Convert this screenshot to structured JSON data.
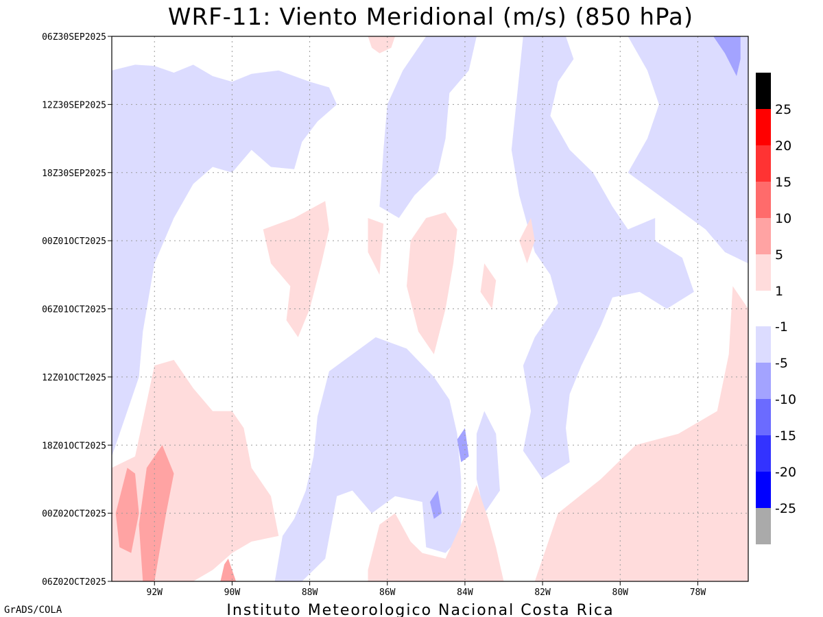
{
  "chart_data": {
    "type": "heatmap",
    "title": "WRF-11: Viento Meridional (m/s) (850 hPa)",
    "xlabel": "",
    "ylabel": "",
    "x_ticks": [
      "92W",
      "90W",
      "88W",
      "86W",
      "84W",
      "82W",
      "80W",
      "78W"
    ],
    "x_tick_values": [
      -92,
      -90,
      -88,
      -86,
      -84,
      -82,
      -80,
      -78
    ],
    "xlim": [
      -93.1,
      -76.7
    ],
    "y_ticks": [
      "06Z30SEP2025",
      "12Z30SEP2025",
      "18Z30SEP2025",
      "00Z01OCT2025",
      "06Z01OCT2025",
      "12Z01OCT2025",
      "18Z01OCT2025",
      "00Z02OCT2025",
      "06Z02OCT2025"
    ],
    "y_tick_values": [
      0,
      6,
      12,
      18,
      24,
      30,
      36,
      42,
      48
    ],
    "ylim": [
      0,
      48
    ],
    "grid": true,
    "colorbar": {
      "position": "right",
      "positive_levels": [
        "25",
        "20",
        "15",
        "10",
        "5",
        "1"
      ],
      "negative_levels": [
        "-1",
        "-5",
        "-10",
        "-15",
        "-20",
        "-25"
      ],
      "positive_colors": [
        "#000000",
        "#ff0000",
        "#ff3333",
        "#ff6b6b",
        "#ffa3a3",
        "#ffdcdc"
      ],
      "negative_colors": [
        "#dcdcff",
        "#a3a3ff",
        "#6b6bff",
        "#3333ff",
        "#0000ff",
        "#aaaaaa"
      ]
    },
    "regions": [
      {
        "v": -3,
        "pts": [
          [
            -93.1,
            3
          ],
          [
            -92.5,
            2.5
          ],
          [
            -92,
            2.6
          ],
          [
            -91.5,
            3.2
          ],
          [
            -91,
            2.5
          ],
          [
            -90.5,
            3.5
          ],
          [
            -90,
            4
          ],
          [
            -89.5,
            3.3
          ],
          [
            -88.8,
            3
          ],
          [
            -88,
            4
          ],
          [
            -87.5,
            4.5
          ],
          [
            -87.3,
            6
          ],
          [
            -87.8,
            7.5
          ],
          [
            -88.2,
            9.3
          ],
          [
            -88.4,
            11.7
          ],
          [
            -89,
            11.5
          ],
          [
            -89.5,
            10
          ],
          [
            -90,
            12
          ],
          [
            -90.5,
            11.5
          ],
          [
            -91,
            13
          ],
          [
            -91.5,
            16
          ],
          [
            -92,
            20
          ],
          [
            -92.3,
            26
          ],
          [
            -92.4,
            30
          ],
          [
            -92.8,
            34
          ],
          [
            -93.1,
            37
          ]
        ]
      },
      {
        "v": -3,
        "pts": [
          [
            -85,
            0
          ],
          [
            -83.7,
            0
          ],
          [
            -83.9,
            3
          ],
          [
            -84.4,
            5
          ],
          [
            -84.5,
            9
          ],
          [
            -84.7,
            12
          ],
          [
            -85.3,
            14
          ],
          [
            -85.7,
            16
          ],
          [
            -86.2,
            15
          ],
          [
            -86.1,
            10
          ],
          [
            -86,
            6
          ],
          [
            -85.6,
            3
          ]
        ]
      },
      {
        "v": -3,
        "pts": [
          [
            -82.5,
            0
          ],
          [
            -81.4,
            0
          ],
          [
            -81.2,
            2
          ],
          [
            -81.6,
            4
          ],
          [
            -81.8,
            7
          ],
          [
            -81.3,
            10
          ],
          [
            -80.7,
            12
          ],
          [
            -80.2,
            15
          ],
          [
            -79.8,
            17
          ],
          [
            -79.1,
            16
          ],
          [
            -79.1,
            18
          ],
          [
            -78.4,
            19.5
          ],
          [
            -78.1,
            22.5
          ],
          [
            -78.8,
            24
          ],
          [
            -79.5,
            22.5
          ],
          [
            -80.2,
            23
          ],
          [
            -80.5,
            25.5
          ],
          [
            -81,
            29
          ],
          [
            -81.3,
            31.5
          ],
          [
            -81.4,
            34.5
          ],
          [
            -81.3,
            37.5
          ],
          [
            -82,
            39
          ],
          [
            -82.5,
            36.5
          ],
          [
            -82.3,
            33
          ],
          [
            -82.5,
            29
          ],
          [
            -82.2,
            26.5
          ],
          [
            -81.6,
            23.5
          ],
          [
            -81.8,
            21
          ],
          [
            -82.2,
            19
          ],
          [
            -82.6,
            14
          ],
          [
            -82.8,
            10
          ]
        ]
      },
      {
        "v": -3,
        "pts": [
          [
            -79.8,
            0
          ],
          [
            -76.7,
            0
          ],
          [
            -76.7,
            20
          ],
          [
            -77.3,
            19
          ],
          [
            -77.8,
            17
          ],
          [
            -78.6,
            15
          ],
          [
            -79.8,
            12
          ],
          [
            -79.3,
            9
          ],
          [
            -79,
            6
          ],
          [
            -79.3,
            3
          ]
        ]
      },
      {
        "v": -3,
        "pts": [
          [
            -87.5,
            29.5
          ],
          [
            -86.3,
            26.5
          ],
          [
            -85.5,
            27.5
          ],
          [
            -84.8,
            30
          ],
          [
            -84.4,
            32
          ],
          [
            -84.2,
            35
          ],
          [
            -84.1,
            39
          ],
          [
            -84.1,
            44
          ],
          [
            -84.5,
            45.5
          ],
          [
            -85,
            45
          ],
          [
            -85.1,
            41
          ],
          [
            -85.8,
            40.5
          ],
          [
            -86.4,
            42
          ],
          [
            -86.9,
            40
          ],
          [
            -87.3,
            40.5
          ],
          [
            -87.6,
            46
          ],
          [
            -88.2,
            48
          ],
          [
            -88.9,
            48
          ],
          [
            -88.7,
            44
          ],
          [
            -88.4,
            42.5
          ],
          [
            -88.1,
            40
          ],
          [
            -87.9,
            37
          ],
          [
            -87.8,
            33.5
          ]
        ]
      },
      {
        "v": -3,
        "pts": [
          [
            -83.7,
            35
          ],
          [
            -83.5,
            33
          ],
          [
            -83.2,
            35
          ],
          [
            -83.1,
            40
          ],
          [
            -83.5,
            42
          ],
          [
            -83.7,
            39
          ]
        ]
      },
      {
        "v": -7,
        "pts": [
          [
            -76.9,
            0
          ],
          [
            -77.6,
            0
          ],
          [
            -77.3,
            1.5
          ],
          [
            -77,
            3.5
          ],
          [
            -76.9,
            2
          ]
        ]
      },
      {
        "v": -7,
        "pts": [
          [
            -84,
            34.5
          ],
          [
            -83.9,
            37
          ],
          [
            -84.1,
            37.5
          ],
          [
            -84.2,
            35.5
          ]
        ]
      },
      {
        "v": -7,
        "pts": [
          [
            -84.7,
            40
          ],
          [
            -84.6,
            42
          ],
          [
            -84.8,
            42.5
          ],
          [
            -84.9,
            41
          ]
        ]
      },
      {
        "v": 3,
        "pts": [
          [
            -86.5,
            0
          ],
          [
            -85.8,
            0
          ],
          [
            -85.9,
            1
          ],
          [
            -86.2,
            1.5
          ],
          [
            -86.4,
            1
          ]
        ]
      },
      {
        "v": 3,
        "pts": [
          [
            -89.2,
            17
          ],
          [
            -88.4,
            16
          ],
          [
            -87.6,
            14.5
          ],
          [
            -87.5,
            17
          ],
          [
            -87.7,
            20
          ],
          [
            -88,
            24
          ],
          [
            -88.3,
            26.5
          ],
          [
            -88.6,
            25
          ],
          [
            -88.5,
            22
          ],
          [
            -89,
            20
          ]
        ]
      },
      {
        "v": 3,
        "pts": [
          [
            -85,
            16
          ],
          [
            -84.5,
            15.5
          ],
          [
            -84.2,
            17
          ],
          [
            -84.3,
            20
          ],
          [
            -84.5,
            24
          ],
          [
            -84.8,
            28
          ],
          [
            -85.2,
            26
          ],
          [
            -85.5,
            22
          ],
          [
            -85.4,
            18
          ]
        ]
      },
      {
        "v": 3,
        "pts": [
          [
            -86.5,
            16
          ],
          [
            -86.1,
            16.5
          ],
          [
            -86.2,
            21
          ],
          [
            -86.5,
            19
          ]
        ]
      },
      {
        "v": 3,
        "pts": [
          [
            -82.3,
            16
          ],
          [
            -82.2,
            18
          ],
          [
            -82.4,
            20
          ],
          [
            -82.6,
            18
          ]
        ]
      },
      {
        "v": 3,
        "pts": [
          [
            -83.5,
            20
          ],
          [
            -83.2,
            21.5
          ],
          [
            -83.3,
            24
          ],
          [
            -83.6,
            22.5
          ]
        ]
      },
      {
        "v": 3,
        "pts": [
          [
            -93.1,
            38
          ],
          [
            -92.5,
            37
          ],
          [
            -92,
            29
          ],
          [
            -91.5,
            28.5
          ],
          [
            -91,
            31
          ],
          [
            -90.5,
            33
          ],
          [
            -90,
            33
          ],
          [
            -89.7,
            34.5
          ],
          [
            -89.5,
            38
          ],
          [
            -89,
            40.5
          ],
          [
            -88.8,
            44
          ],
          [
            -89.5,
            44.5
          ],
          [
            -90,
            45.5
          ],
          [
            -90.5,
            47
          ],
          [
            -91,
            48
          ],
          [
            -93.1,
            48
          ]
        ]
      },
      {
        "v": 3,
        "pts": [
          [
            -86.5,
            47
          ],
          [
            -86.2,
            43
          ],
          [
            -85.8,
            42
          ],
          [
            -85.4,
            44.5
          ],
          [
            -85.1,
            45.5
          ],
          [
            -84.5,
            46
          ],
          [
            -84.1,
            43
          ],
          [
            -83.7,
            39.5
          ],
          [
            -83.4,
            42.5
          ],
          [
            -83.2,
            45
          ],
          [
            -83,
            48
          ],
          [
            -86.5,
            48
          ]
        ]
      },
      {
        "v": 3,
        "pts": [
          [
            -82.2,
            48
          ],
          [
            -81.6,
            42
          ],
          [
            -80.5,
            39
          ],
          [
            -79.6,
            36
          ],
          [
            -78.5,
            35
          ],
          [
            -77.5,
            33
          ],
          [
            -77.2,
            28
          ],
          [
            -77.1,
            22
          ],
          [
            -76.7,
            24
          ],
          [
            -76.7,
            48
          ]
        ]
      },
      {
        "v": 7,
        "pts": [
          [
            -92.7,
            38
          ],
          [
            -92.5,
            38.5
          ],
          [
            -92.4,
            42
          ],
          [
            -92.6,
            45.5
          ],
          [
            -92.9,
            45
          ],
          [
            -93,
            42
          ]
        ]
      },
      {
        "v": 7,
        "pts": [
          [
            -92.2,
            38
          ],
          [
            -91.8,
            36
          ],
          [
            -91.5,
            38.5
          ],
          [
            -91.7,
            42
          ],
          [
            -92,
            48
          ],
          [
            -92.3,
            48
          ],
          [
            -92.4,
            43
          ]
        ]
      },
      {
        "v": 7,
        "pts": [
          [
            -90.1,
            46
          ],
          [
            -89.9,
            48
          ],
          [
            -90.3,
            48
          ],
          [
            -90.2,
            46.5
          ]
        ]
      }
    ]
  },
  "footer_left": "GrADS/COLA",
  "footer_center": "Instituto Meteorologico Nacional Costa Rica"
}
